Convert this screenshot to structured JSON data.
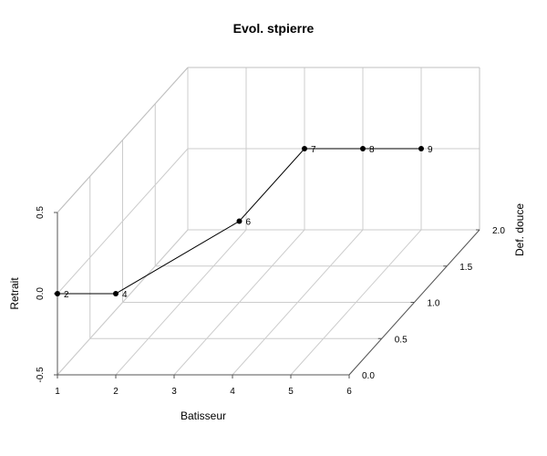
{
  "chart_data": {
    "type": "scatter3d",
    "title": "Evol. stpierre",
    "xlabel": "Batisseur",
    "ylabel": "Def. douce",
    "zlabel": "Retrait",
    "xlim": [
      1,
      6
    ],
    "ylim": [
      0,
      2
    ],
    "zlim": [
      -0.5,
      0.5
    ],
    "x_ticks": [
      "1",
      "2",
      "3",
      "4",
      "5",
      "6"
    ],
    "y_ticks": [
      "0.0",
      "0.5",
      "1.0",
      "1.5",
      "2.0"
    ],
    "z_ticks": [
      "-0.5",
      "0.0",
      "0.5"
    ],
    "grid": true,
    "points": [
      {
        "label": "2",
        "x": 1,
        "y": 0,
        "z": 0
      },
      {
        "label": "4",
        "x": 2,
        "y": 0,
        "z": 0
      },
      {
        "label": "6",
        "x": 3,
        "y": 1,
        "z": 0
      },
      {
        "label": "7",
        "x": 3,
        "y": 2,
        "z": 0
      },
      {
        "label": "8",
        "x": 4,
        "y": 2,
        "z": 0
      },
      {
        "label": "9",
        "x": 5,
        "y": 2,
        "z": 0
      }
    ],
    "colors": {
      "points": "#000000",
      "line": "#000000",
      "grid": "#cccccc"
    }
  }
}
